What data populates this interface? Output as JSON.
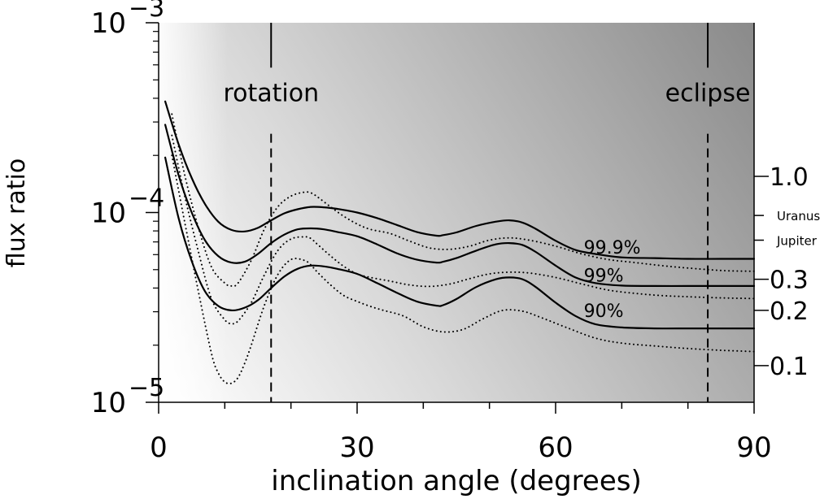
{
  "chart_data": {
    "type": "line",
    "title": "",
    "xlabel": "inclination angle (degrees)",
    "ylabel": "flux ratio",
    "xlim": [
      0,
      90
    ],
    "ylim": [
      1e-05,
      0.001
    ],
    "yscale": "log",
    "x_ticks": [
      0,
      30,
      60,
      90
    ],
    "y_ticks": [
      {
        "value": 1e-05,
        "base": "10",
        "exp": "−5"
      },
      {
        "value": 0.0001,
        "base": "10",
        "exp": "−4"
      },
      {
        "value": 0.001,
        "base": "10",
        "exp": "−3"
      }
    ],
    "right_ticks": [
      {
        "value": 0.000155,
        "label": "1.0",
        "size": "large"
      },
      {
        "value": 9.65e-05,
        "label": "Uranus",
        "size": "small"
      },
      {
        "value": 7.15e-05,
        "label": "Jupiter",
        "size": "small"
      },
      {
        "value": 4.45e-05,
        "label": "0.3",
        "size": "large"
      },
      {
        "value": 3.05e-05,
        "label": "0.2",
        "size": "large"
      },
      {
        "value": 1.56e-05,
        "label": "0.1",
        "size": "large"
      }
    ],
    "annotations": [
      {
        "label": "rotation",
        "x": 17,
        "y_top": 0.001,
        "y_line_start": 0.00058,
        "y_dash_top": 0.00026,
        "text_y": 0.00043
      },
      {
        "label": "eclipse",
        "x": 83,
        "y_top": 0.001,
        "y_line_start": 0.00058,
        "y_dash_top": 0.00026,
        "text_y": 0.00043
      }
    ],
    "curve_labels": [
      {
        "text": "99.9%",
        "x": 65,
        "y": 6.58e-05
      },
      {
        "text": "99%",
        "x": 65,
        "y": 4.68e-05
      },
      {
        "text": "90%",
        "x": 65,
        "y": 3.05e-05
      }
    ],
    "series": [
      {
        "style": "solid",
        "x": [
          1,
          3,
          5,
          7,
          9,
          11,
          13,
          15,
          17,
          19,
          21,
          23,
          25,
          27,
          30,
          33,
          36,
          39,
          42,
          43,
          45,
          48,
          51,
          53,
          55,
          57,
          60,
          63,
          66,
          70,
          75,
          80,
          85,
          90
        ],
        "y": [
          0.000385,
          0.00023,
          0.000152,
          0.000111,
          8.95e-05,
          8.1e-05,
          7.95e-05,
          8.3e-05,
          9.1e-05,
          9.9e-05,
          0.000104,
          0.000107,
          0.0001065,
          0.0001045,
          0.0001,
          9.35e-05,
          8.6e-05,
          7.9e-05,
          7.55e-05,
          7.6e-05,
          7.85e-05,
          8.5e-05,
          8.95e-05,
          9.1e-05,
          8.85e-05,
          8.2e-05,
          7.1e-05,
          6.35e-05,
          6.05e-05,
          5.8e-05,
          5.75e-05,
          5.7e-05,
          5.7e-05,
          5.7e-05
        ]
      },
      {
        "style": "solid",
        "x": [
          1,
          3,
          5,
          7,
          9,
          11,
          13,
          15,
          17,
          19,
          21,
          23,
          25,
          27,
          30,
          33,
          36,
          39,
          42,
          43,
          45,
          48,
          51,
          53,
          55,
          57,
          60,
          63,
          66,
          70,
          75,
          80,
          85,
          90
        ],
        "y": [
          0.00029,
          0.000158,
          0.0001,
          7.15e-05,
          5.9e-05,
          5.45e-05,
          5.5e-05,
          6.05e-05,
          6.9e-05,
          7.65e-05,
          8.15e-05,
          8.25e-05,
          8.15e-05,
          7.9e-05,
          7.5e-05,
          6.8e-05,
          6.1e-05,
          5.65e-05,
          5.45e-05,
          5.5e-05,
          5.75e-05,
          6.3e-05,
          6.8e-05,
          6.9e-05,
          6.75e-05,
          6.2e-05,
          5.25e-05,
          4.55e-05,
          4.25e-05,
          4.12e-05,
          4.1e-05,
          4.1e-05,
          4.1e-05,
          4.1e-05
        ]
      },
      {
        "style": "solid",
        "x": [
          1,
          3,
          5,
          7,
          9,
          11,
          13,
          15,
          17,
          19,
          21,
          23,
          25,
          27,
          30,
          33,
          36,
          39,
          42,
          43,
          45,
          48,
          51,
          53,
          55,
          57,
          60,
          63,
          66,
          70,
          75,
          80,
          85,
          90
        ],
        "y": [
          0.000195,
          9.4e-05,
          5.55e-05,
          3.85e-05,
          3.22e-05,
          3.05e-05,
          3.15e-05,
          3.45e-05,
          4e-05,
          4.6e-05,
          5.05e-05,
          5.25e-05,
          5.2e-05,
          5.05e-05,
          4.75e-05,
          4.25e-05,
          3.78e-05,
          3.4e-05,
          3.23e-05,
          3.25e-05,
          3.5e-05,
          4.05e-05,
          4.45e-05,
          4.55e-05,
          4.45e-05,
          4.05e-05,
          3.35e-05,
          2.85e-05,
          2.58e-05,
          2.48e-05,
          2.45e-05,
          2.45e-05,
          2.45e-05,
          2.45e-05
        ]
      },
      {
        "style": "dotted",
        "x": [
          2,
          4,
          6,
          8,
          10,
          11,
          12,
          14,
          16,
          18,
          20,
          22,
          23,
          24,
          26,
          28,
          30,
          32,
          35,
          38,
          41,
          44,
          47,
          50,
          53,
          56,
          60,
          64,
          68,
          72,
          76,
          80,
          85,
          90
        ],
        "y": [
          0.00033,
          0.000155,
          8.35e-05,
          5.15e-05,
          4.25e-05,
          4.1e-05,
          4.25e-05,
          5.6e-05,
          8.2e-05,
          0.000107,
          0.000122,
          0.000128,
          0.000127,
          0.000121,
          0.000107,
          9.55e-05,
          8.7e-05,
          8.15e-05,
          7.75e-05,
          7.05e-05,
          6.5e-05,
          6.4e-05,
          6.65e-05,
          7.15e-05,
          7.35e-05,
          7.15e-05,
          6.65e-05,
          6.05e-05,
          5.65e-05,
          5.45e-05,
          5.25e-05,
          5.1e-05,
          4.95e-05,
          4.9e-05
        ]
      },
      {
        "style": "dotted",
        "x": [
          2,
          4,
          6,
          8,
          10,
          11,
          12,
          14,
          16,
          18,
          20,
          22,
          23,
          24,
          26,
          28,
          30,
          32,
          35,
          38,
          41,
          44,
          47,
          50,
          53,
          56,
          60,
          64,
          68,
          72,
          76,
          80,
          85,
          90
        ],
        "y": [
          0.000255,
          0.00012,
          6.25e-05,
          3.5e-05,
          2.72e-05,
          2.6e-05,
          2.68e-05,
          3.35e-05,
          4.7e-05,
          6.3e-05,
          7.25e-05,
          7.45e-05,
          7.3e-05,
          6.8e-05,
          5.9e-05,
          5.2e-05,
          4.75e-05,
          4.55e-05,
          4.35e-05,
          4.15e-05,
          4.08e-05,
          4.2e-05,
          4.48e-05,
          4.75e-05,
          4.85e-05,
          4.8e-05,
          4.55e-05,
          4.2e-05,
          3.9e-05,
          3.75e-05,
          3.65e-05,
          3.6e-05,
          3.55e-05,
          3.52e-05
        ]
      },
      {
        "style": "dotted",
        "x": [
          2,
          4,
          6,
          8,
          9,
          10,
          11,
          12,
          13,
          14,
          16,
          18,
          20,
          22,
          23,
          24,
          26,
          28,
          30,
          32,
          34,
          37,
          40,
          43,
          46,
          49,
          52,
          55,
          58,
          62,
          66,
          70,
          75,
          80,
          85,
          90
        ],
        "y": [
          0.0002,
          8.7e-05,
          3.85e-05,
          1.8e-05,
          1.43e-05,
          1.28e-05,
          1.26e-05,
          1.35e-05,
          1.6e-05,
          2e-05,
          3.25e-05,
          4.7e-05,
          5.65e-05,
          5.6e-05,
          5.3e-05,
          4.85e-05,
          4.15e-05,
          3.65e-05,
          3.4e-05,
          3.2e-05,
          3.05e-05,
          2.85e-05,
          2.5e-05,
          2.35e-05,
          2.42e-05,
          2.75e-05,
          3.05e-05,
          3.02e-05,
          2.78e-05,
          2.45e-05,
          2.18e-05,
          2.05e-05,
          1.98e-05,
          1.92e-05,
          1.88e-05,
          1.85e-05
        ]
      }
    ]
  }
}
